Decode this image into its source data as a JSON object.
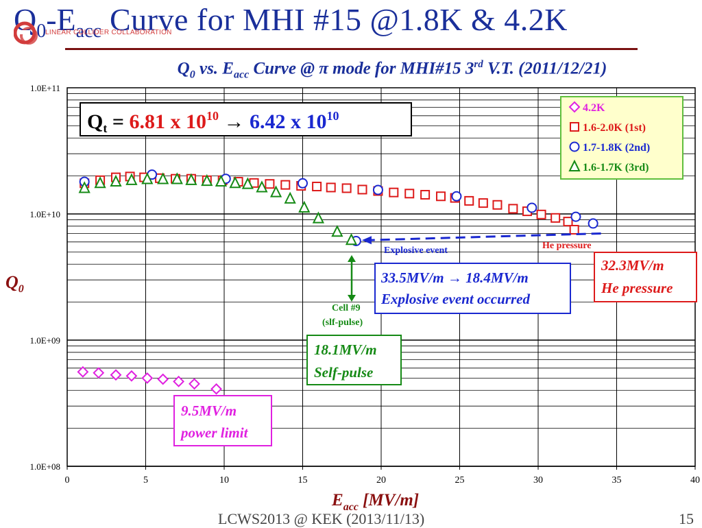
{
  "slide": {
    "title_q": "Q",
    "title_q_sub": "0",
    "title_mid": "-E",
    "title_e_sub": "acc",
    "title_rest": " Curve for MHI #15 @1.8K & 4.2K",
    "logo_text": "LINEAR COLLIDER COLLABORATION",
    "footer_left": "LCWS2013 @ KEK (2013/11/13)",
    "page_number": "15"
  },
  "chart_data": {
    "type": "scatter",
    "title_parts": [
      "Q",
      "0",
      " vs. E",
      "acc",
      " Curve @ π mode for MHI#15 3",
      "rd",
      " V.T. (2011/12/21)"
    ],
    "xlabel": "E",
    "xlabel_sub": "acc",
    "xlabel_unit": " [MV/m]",
    "ylabel": "Q",
    "ylabel_sub": "0",
    "xlim": [
      0,
      40
    ],
    "ylim": [
      100000000.0,
      100000000000.0
    ],
    "yscale": "log",
    "grid": true,
    "legend_position": "top-right",
    "x_ticks": [
      "0",
      "5",
      "10",
      "15",
      "20",
      "25",
      "30",
      "35",
      "40"
    ],
    "y_ticks": [
      "1.0E+08",
      "1.0E+09",
      "1.0E+10",
      "1.0E+11"
    ],
    "series": [
      {
        "name": "4.2K",
        "marker": "diamond",
        "color": "#e020e0",
        "points": [
          [
            1.0,
            560000000.0
          ],
          [
            2.0,
            550000000.0
          ],
          [
            3.1,
            530000000.0
          ],
          [
            4.1,
            520000000.0
          ],
          [
            5.1,
            500000000.0
          ],
          [
            6.1,
            490000000.0
          ],
          [
            7.1,
            470000000.0
          ],
          [
            8.1,
            450000000.0
          ],
          [
            9.5,
            410000000.0
          ]
        ]
      },
      {
        "name": "1.6-2.0K (1st)",
        "marker": "square",
        "color": "#dd1a1a",
        "points": [
          [
            1.1,
            17500000000.0
          ],
          [
            2.1,
            18500000000.0
          ],
          [
            3.1,
            19500000000.0
          ],
          [
            4.0,
            19800000000.0
          ],
          [
            4.9,
            19500000000.0
          ],
          [
            5.9,
            19200000000.0
          ],
          [
            6.9,
            19000000000.0
          ],
          [
            7.9,
            19000000000.0
          ],
          [
            8.9,
            18500000000.0
          ],
          [
            9.9,
            18500000000.0
          ],
          [
            10.9,
            18000000000.0
          ],
          [
            11.9,
            17600000000.0
          ],
          [
            12.9,
            17300000000.0
          ],
          [
            13.9,
            17000000000.0
          ],
          [
            14.9,
            16700000000.0
          ],
          [
            15.9,
            16500000000.0
          ],
          [
            16.8,
            16200000000.0
          ],
          [
            17.8,
            16000000000.0
          ],
          [
            18.8,
            15600000000.0
          ],
          [
            19.8,
            15200000000.0
          ],
          [
            20.8,
            14800000000.0
          ],
          [
            21.8,
            14500000000.0
          ],
          [
            22.8,
            14200000000.0
          ],
          [
            23.8,
            13800000000.0
          ],
          [
            24.7,
            13400000000.0
          ],
          [
            25.6,
            12700000000.0
          ],
          [
            26.5,
            12200000000.0
          ],
          [
            27.4,
            11800000000.0
          ],
          [
            28.4,
            11000000000.0
          ],
          [
            29.3,
            10500000000.0
          ],
          [
            30.2,
            9900000000.0
          ],
          [
            31.1,
            9300000000.0
          ],
          [
            31.9,
            8700000000.0
          ],
          [
            32.3,
            7500000000.0
          ]
        ]
      },
      {
        "name": "1.7-1.8K (2nd)",
        "marker": "circle",
        "color": "#1a28d0",
        "points": [
          [
            1.1,
            18000000000.0
          ],
          [
            5.4,
            20500000000.0
          ],
          [
            10.1,
            19000000000.0
          ],
          [
            15.0,
            17500000000.0
          ],
          [
            19.8,
            15500000000.0
          ],
          [
            24.8,
            13800000000.0
          ],
          [
            29.6,
            11200000000.0
          ],
          [
            32.4,
            9500000000.0
          ],
          [
            33.5,
            8400000000.0
          ],
          [
            18.4,
            6100000000.0
          ]
        ]
      },
      {
        "name": "1.6-1.7K (3rd)",
        "marker": "triangle",
        "color": "#158a15",
        "points": [
          [
            1.1,
            16000000000.0
          ],
          [
            2.1,
            17500000000.0
          ],
          [
            3.1,
            18000000000.0
          ],
          [
            4.1,
            18500000000.0
          ],
          [
            5.1,
            18800000000.0
          ],
          [
            6.1,
            18800000000.0
          ],
          [
            7.0,
            18800000000.0
          ],
          [
            7.9,
            18500000000.0
          ],
          [
            8.9,
            18200000000.0
          ],
          [
            9.8,
            18000000000.0
          ],
          [
            10.7,
            17500000000.0
          ],
          [
            11.5,
            17200000000.0
          ],
          [
            12.4,
            16200000000.0
          ],
          [
            13.3,
            14800000000.0
          ],
          [
            14.2,
            13200000000.0
          ],
          [
            15.1,
            11200000000.0
          ],
          [
            16.0,
            9200000000.0
          ],
          [
            17.2,
            7200000000.0
          ],
          [
            18.1,
            6200000000.0
          ]
        ]
      }
    ],
    "legend": [
      {
        "label": "4.2K",
        "marker": "diamond",
        "color": "#e020e0"
      },
      {
        "label": "1.6-2.0K (1st)",
        "marker": "square",
        "color": "#dd1a1a"
      },
      {
        "label": "1.7-1.8K (2nd)",
        "marker": "circle",
        "color": "#1a28d0"
      },
      {
        "label": "1.6-1.7K (3rd)",
        "marker": "triangle",
        "color": "#158a15"
      }
    ],
    "he_pressure_line": {
      "from": [
        18.6,
        6200000000.0
      ],
      "to": [
        34.0,
        7000000000.0
      ],
      "color": "#1a28d0"
    },
    "qt_box": {
      "label": "Q",
      "label_sub": "t",
      "eq": " = ",
      "value1": "6.81 x 10",
      "exp1": "10",
      "arrow": " → ",
      "value2": "6.42 x 10",
      "exp2": "10",
      "color1": "#dd1a1a",
      "color2": "#1a28d0"
    },
    "annotations": {
      "explosive_event": "Explosive event",
      "he_pressure_small": "He pressure",
      "cell9_line1": "Cell #9",
      "cell9_line2": "(slf-pulse)",
      "box_he": [
        "32.3MV/m",
        "He pressure"
      ],
      "box_explosive": [
        "33.5MV/m → 18.4MV/m",
        "Explosive event occurred"
      ],
      "box_selfpulse": [
        "18.1MV/m",
        "Self-pulse"
      ],
      "box_power": [
        "9.5MV/m",
        "power limit"
      ]
    }
  }
}
